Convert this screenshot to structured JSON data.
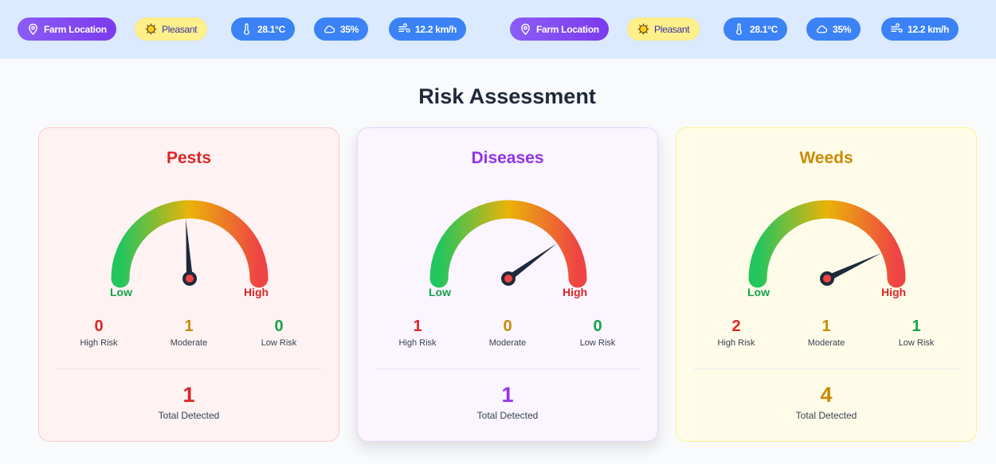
{
  "header": {
    "chips": [
      {
        "type": "loc",
        "icon": "map-pin-icon",
        "label": "Farm Location"
      },
      {
        "type": "weather",
        "icon": "sun-cloud-icon",
        "label": "Pleasant"
      },
      {
        "type": "blue",
        "icon": "thermometer-icon",
        "label": "28.1°C"
      },
      {
        "type": "blue",
        "icon": "cloud-icon",
        "label": "35%"
      },
      {
        "type": "blue",
        "icon": "wind-icon",
        "label": "12.2 km/h"
      }
    ]
  },
  "title": "Risk Assessment",
  "gauge_labels": {
    "low": "Low",
    "high": "High"
  },
  "stat_labels": {
    "high": "High Risk",
    "moderate": "Moderate",
    "low": "Low Risk",
    "total": "Total Detected"
  },
  "colors": {
    "high": "#dc2626",
    "moderate": "#ca8a04",
    "low": "#16a34a"
  },
  "cards": [
    {
      "key": "pests",
      "title": "Pests",
      "color": "#dc2626",
      "gauge_level": 0.48,
      "high": "0",
      "moderate": "1",
      "low": "0",
      "total": "1"
    },
    {
      "key": "diseases",
      "title": "Diseases",
      "color": "#9333ea",
      "gauge_level": 0.8,
      "high": "1",
      "moderate": "0",
      "low": "0",
      "total": "1"
    },
    {
      "key": "weeds",
      "title": "Weeds",
      "color": "#ca8a04",
      "gauge_level": 0.86,
      "high": "2",
      "moderate": "1",
      "low": "1",
      "total": "4"
    }
  ]
}
